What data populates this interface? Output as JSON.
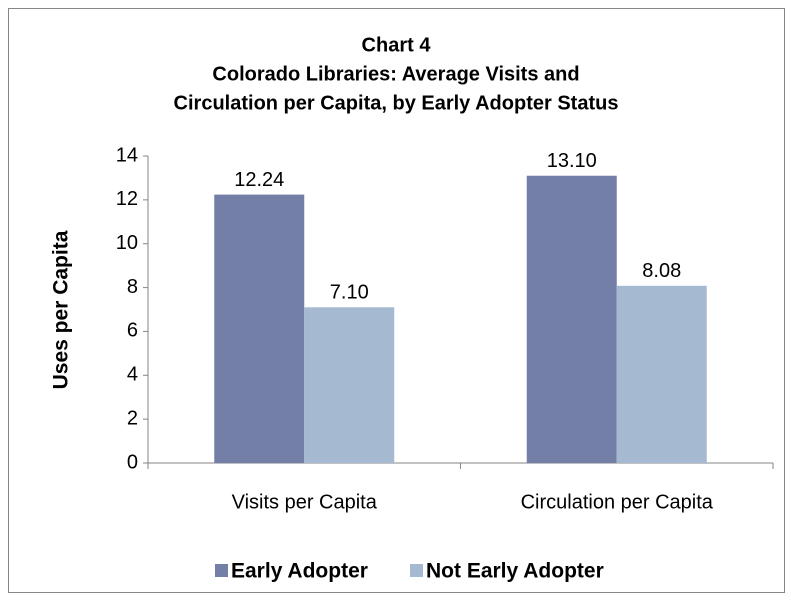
{
  "chart_data": {
    "type": "bar",
    "title": [
      "Chart 4",
      "Colorado Libraries: Average Visits and",
      "Circulation per Capita, by Early Adopter Status"
    ],
    "ylabel": "Uses per Capita",
    "categories": [
      "Visits per Capita",
      "Circulation per Capita"
    ],
    "series": [
      {
        "name": "Early Adopter",
        "color": "#737fa7",
        "values": [
          12.24,
          13.1
        ],
        "value_labels": [
          "12.24",
          "13.10"
        ]
      },
      {
        "name": "Not Early Adopter",
        "color": "#a5b9d1",
        "values": [
          7.1,
          8.08
        ],
        "value_labels": [
          "7.10",
          "8.08"
        ]
      }
    ],
    "ylim": [
      0,
      14
    ],
    "yticks": [
      0,
      2,
      4,
      6,
      8,
      10,
      12,
      14
    ],
    "grid": false,
    "legend": "bottom"
  }
}
